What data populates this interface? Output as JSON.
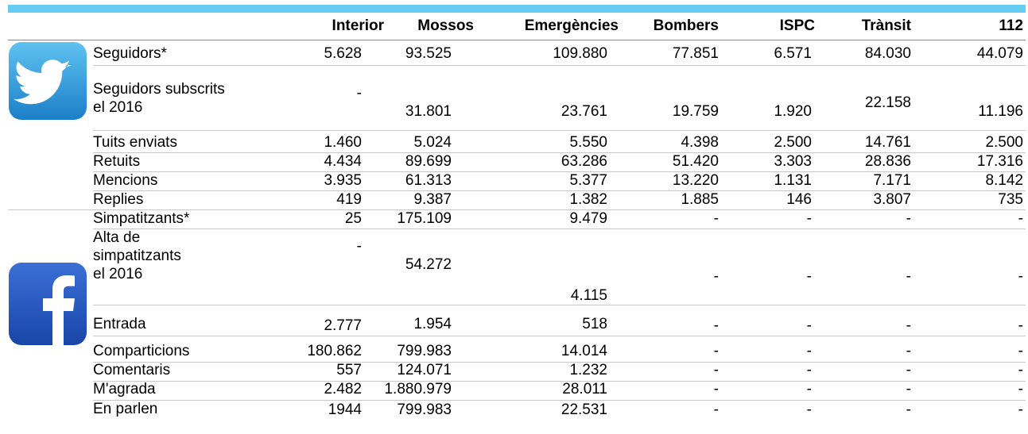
{
  "table": {
    "columns": [
      "Interior",
      "Mossos",
      "Emergències",
      "Bombers",
      "ISPC",
      "Trànsit",
      "112"
    ],
    "rows": [
      {
        "label": [
          "Seguidors*"
        ],
        "cells": [
          "5.628",
          "93.525",
          "109.880",
          "77.851",
          "6.571",
          "84.030",
          "44.079"
        ]
      },
      {
        "label": [
          "Seguidors subscrits",
          "el 2016"
        ],
        "cells": [
          "-",
          "31.801",
          "23.761",
          "19.759",
          "1.920",
          "22.158",
          "11.196"
        ]
      },
      {
        "label": [
          "Tuits enviats"
        ],
        "cells": [
          "1.460",
          "5.024",
          "5.550",
          "4.398",
          "2.500",
          "14.761",
          "2.500"
        ]
      },
      {
        "label": [
          "Retuits"
        ],
        "cells": [
          "4.434",
          "89.699",
          "63.286",
          "51.420",
          "3.303",
          "28.836",
          "17.316"
        ]
      },
      {
        "label": [
          "Mencions"
        ],
        "cells": [
          "3.935",
          "61.313",
          "5.377",
          "13.220",
          "1.131",
          "7.171",
          "8.142"
        ]
      },
      {
        "label": [
          "Replies"
        ],
        "cells": [
          "419",
          "9.387",
          "1.382",
          "1.885",
          "146",
          "3.807",
          "735"
        ]
      },
      {
        "label": [
          "Simpatitzants*"
        ],
        "cells": [
          "25",
          "175.109",
          "9.479",
          "-",
          "-",
          "-",
          "-"
        ]
      },
      {
        "label": [
          "Alta de",
          "simpatitzants",
          "el 2016"
        ],
        "cells": [
          "-",
          "54.272",
          "4.115",
          "-",
          "-",
          "-",
          "-"
        ]
      },
      {
        "label": [
          "Entrada"
        ],
        "cells": [
          "2.777",
          "1.954",
          "518",
          "-",
          "-",
          "-",
          "-"
        ]
      },
      {
        "label": [
          "Comparticions"
        ],
        "cells": [
          "180.862",
          "799.983",
          "14.014",
          "-",
          "-",
          "-",
          "-"
        ]
      },
      {
        "label": [
          "Comentaris"
        ],
        "cells": [
          "557",
          "124.071",
          "1.232",
          "-",
          "-",
          "-",
          "-"
        ]
      },
      {
        "label": [
          "M'agrada"
        ],
        "cells": [
          "2.482",
          "1.880.979",
          "28.011",
          "-",
          "-",
          "-",
          "-"
        ]
      },
      {
        "label": [
          "En parlen"
        ],
        "cells": [
          "1944",
          "799.983",
          "22.531",
          "-",
          "-",
          "-",
          "-"
        ]
      }
    ]
  }
}
